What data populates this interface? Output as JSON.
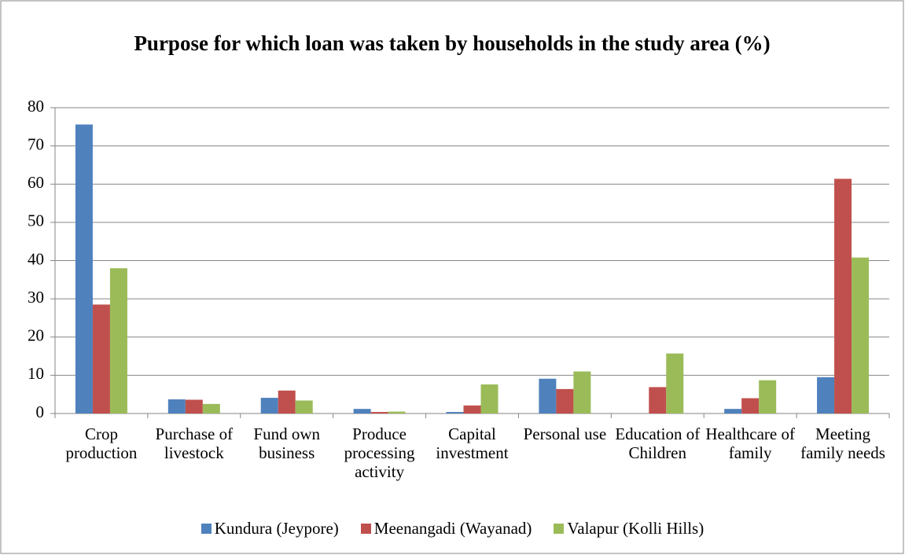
{
  "chart_data": {
    "type": "bar",
    "title": "Purpose for which loan was taken by households in the study area (%)",
    "categories": [
      "Crop production",
      "Purchase of livestock",
      "Fund own business",
      "Produce processing activity",
      "Capital investment",
      "Personal use",
      "Education of Children",
      "Healthcare of family",
      "Meeting family needs"
    ],
    "series": [
      {
        "name": "Kundura (Jeypore)",
        "color": "#4f81bd",
        "values": [
          75.6,
          3.7,
          4.1,
          1.2,
          0.4,
          9.1,
          0,
          1.2,
          9.5
        ]
      },
      {
        "name": "Meenangadi (Wayanad)",
        "color": "#c0504d",
        "values": [
          28.5,
          3.6,
          6.0,
          0.4,
          2.1,
          6.4,
          6.9,
          4.0,
          61.4
        ]
      },
      {
        "name": "Valapur (Kolli Hills)",
        "color": "#9bbb59",
        "values": [
          38.0,
          2.5,
          3.4,
          0.5,
          7.6,
          11.0,
          15.7,
          8.7,
          40.8
        ]
      }
    ],
    "ylim": [
      0,
      80
    ],
    "yticks": [
      0,
      10,
      20,
      30,
      40,
      50,
      60,
      70,
      80
    ],
    "grid": true,
    "legend": "bottom"
  }
}
